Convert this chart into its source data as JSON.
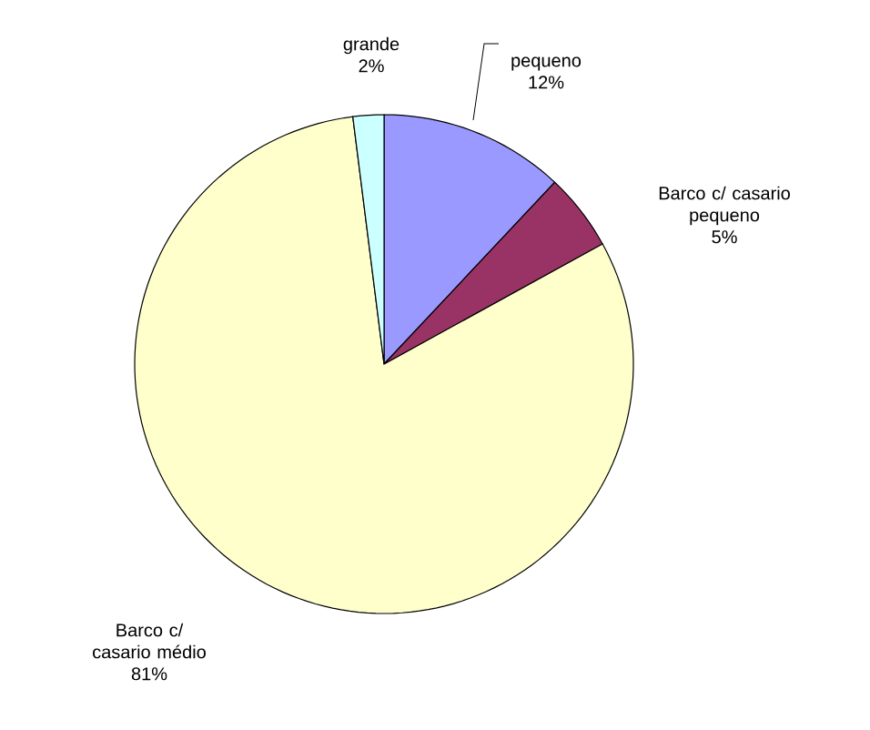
{
  "chart_data": {
    "type": "pie",
    "categories": [
      "pequeno",
      "Barco c/ casario pequeno",
      "Barco c/ casario médio",
      "grande"
    ],
    "values": [
      12,
      5,
      81,
      2
    ],
    "value_labels": [
      "12%",
      "5%",
      "81%",
      "2%"
    ],
    "colors": [
      "#9999ff",
      "#993366",
      "#ffffcc",
      "#ccffff"
    ]
  }
}
